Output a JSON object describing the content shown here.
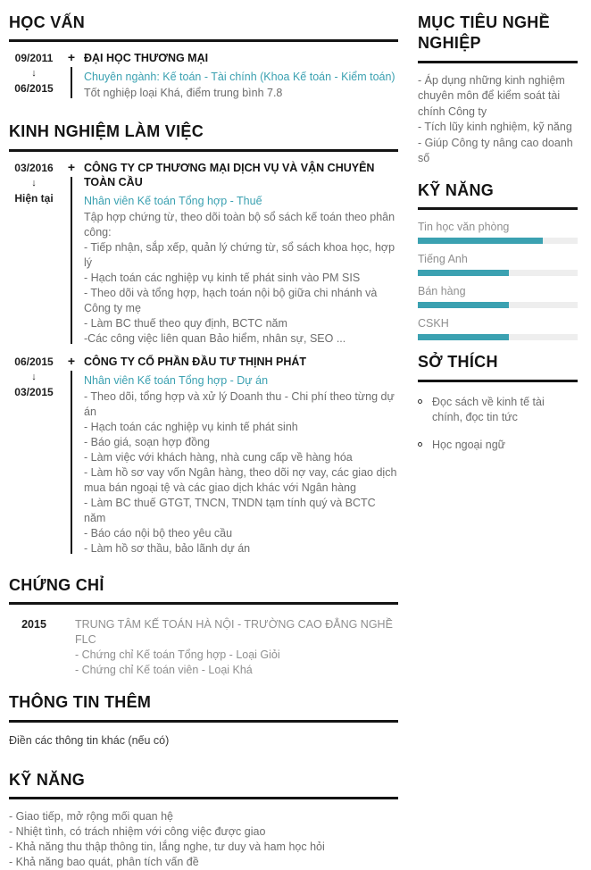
{
  "icons": {
    "arrow_down": "↓",
    "plus": "+"
  },
  "theme": {
    "accent": "#3ba1b1",
    "heading_color": "#141414",
    "body_gray": "#6d6d6d",
    "muted_gray": "#8f8f8f",
    "bar_track": "#eeeeee"
  },
  "left": {
    "education": {
      "title": "HỌC VẤN",
      "entries": [
        {
          "date_start": "09/2011",
          "date_end": "06/2015",
          "org": "ĐẠI HỌC THƯƠNG MẠI",
          "subtitle": "Chuyên ngành: Kế toán - Tài chính (Khoa Kế toán - Kiểm toán)",
          "lines": [
            "Tốt nghiệp loại Khá, điểm trung bình 7.8"
          ]
        }
      ]
    },
    "experience": {
      "title": "KINH NGHIỆM LÀM VIỆC",
      "entries": [
        {
          "date_start": "03/2016",
          "date_end": "Hiện tại",
          "org": "CÔNG TY CP THƯƠNG MẠI DỊCH VỤ VÀ VẬN CHUYÊN TOÀN CẦU",
          "subtitle": "Nhân viên Kế toán Tổng hợp - Thuế",
          "lines": [
            "Tập hợp chứng từ, theo dõi toàn bộ sổ sách kế toán theo phân công:",
            "- Tiếp nhận, sắp xếp, quản lý chứng từ, sổ sách khoa học, hợp lý",
            "- Hạch toán các nghiệp vụ kinh tế phát sinh vào PM SIS",
            "- Theo dõi và tổng hợp, hạch toán nội bộ giữa chi nhánh và Công ty mẹ",
            "- Làm BC thuế theo quy định, BCTC năm",
            "-Các công việc liên quan Bảo hiểm, nhân sự, SEO ..."
          ]
        },
        {
          "date_start": "06/2015",
          "date_end": "03/2015",
          "org": "CÔNG TY CỔ PHẦN ĐẦU TƯ THỊNH PHÁT",
          "subtitle": "Nhân viên Kế toán Tổng hợp - Dự án",
          "lines": [
            "- Theo dõi, tổng hợp và xử lý Doanh thu - Chi phí theo từng dự án",
            "- Hạch toán các nghiệp vụ kinh tế phát sinh",
            "- Báo giá, soạn hợp đồng",
            "- Làm việc với khách hàng, nhà cung cấp về hàng hóa",
            "- Làm hồ sơ vay vốn Ngân hàng, theo dõi nợ vay, các giao dịch mua bán ngoại tệ và các giao dịch khác với Ngân hàng",
            "- Làm BC thuế GTGT, TNCN, TNDN tạm tính quý và BCTC năm",
            "- Báo cáo nội bộ theo yêu cầu",
            "- Làm hồ sơ thầu, bảo lãnh dự án"
          ]
        }
      ]
    },
    "certificates": {
      "title": "CHỨNG CHỈ",
      "entries": [
        {
          "year": "2015",
          "org": "TRUNG TÂM KẾ TOÁN HÀ NỘI - TRƯỜNG CAO ĐẲNG NGHỀ FLC",
          "lines": [
            "- Chứng chỉ Kế toán Tổng hợp - Loại Giỏi",
            "- Chứng chỉ Kế toán viên - Loại Khá"
          ]
        }
      ]
    },
    "additional_info": {
      "title": "THÔNG TIN THÊM",
      "text": "Điền các thông tin khác (nếu có)"
    },
    "soft_skills": {
      "title": "KỸ NĂNG",
      "lines": [
        "- Giao tiếp, mở rộng mối quan hệ",
        "- Nhiệt tình, có trách nhiệm với công việc được giao",
        "- Khả năng thu thập thông tin, lắng nghe, tư duy và ham học hỏi",
        "- Khả năng bao quát, phân tích vấn đề"
      ]
    }
  },
  "right": {
    "objective": {
      "title": "MỤC TIÊU NGHỀ NGHIỆP",
      "lines": [
        "- Áp dụng những kinh nghiệm chuyên môn để kiểm soát tài chính Công ty",
        "- Tích lũy kinh nghiệm, kỹ năng",
        "- Giúp Công ty nâng cao doanh số"
      ]
    },
    "skills": {
      "title": "KỸ NĂNG",
      "items": [
        {
          "label": "Tin học văn phòng",
          "percent": 78
        },
        {
          "label": "Tiếng Anh",
          "percent": 57
        },
        {
          "label": "Bán hàng",
          "percent": 57
        },
        {
          "label": "CSKH",
          "percent": 57
        }
      ]
    },
    "hobbies": {
      "title": "SỞ THÍCH",
      "items": [
        "Đọc sách về kinh tế tài chính, đọc tin tức",
        "Học ngoại ngữ"
      ]
    }
  }
}
